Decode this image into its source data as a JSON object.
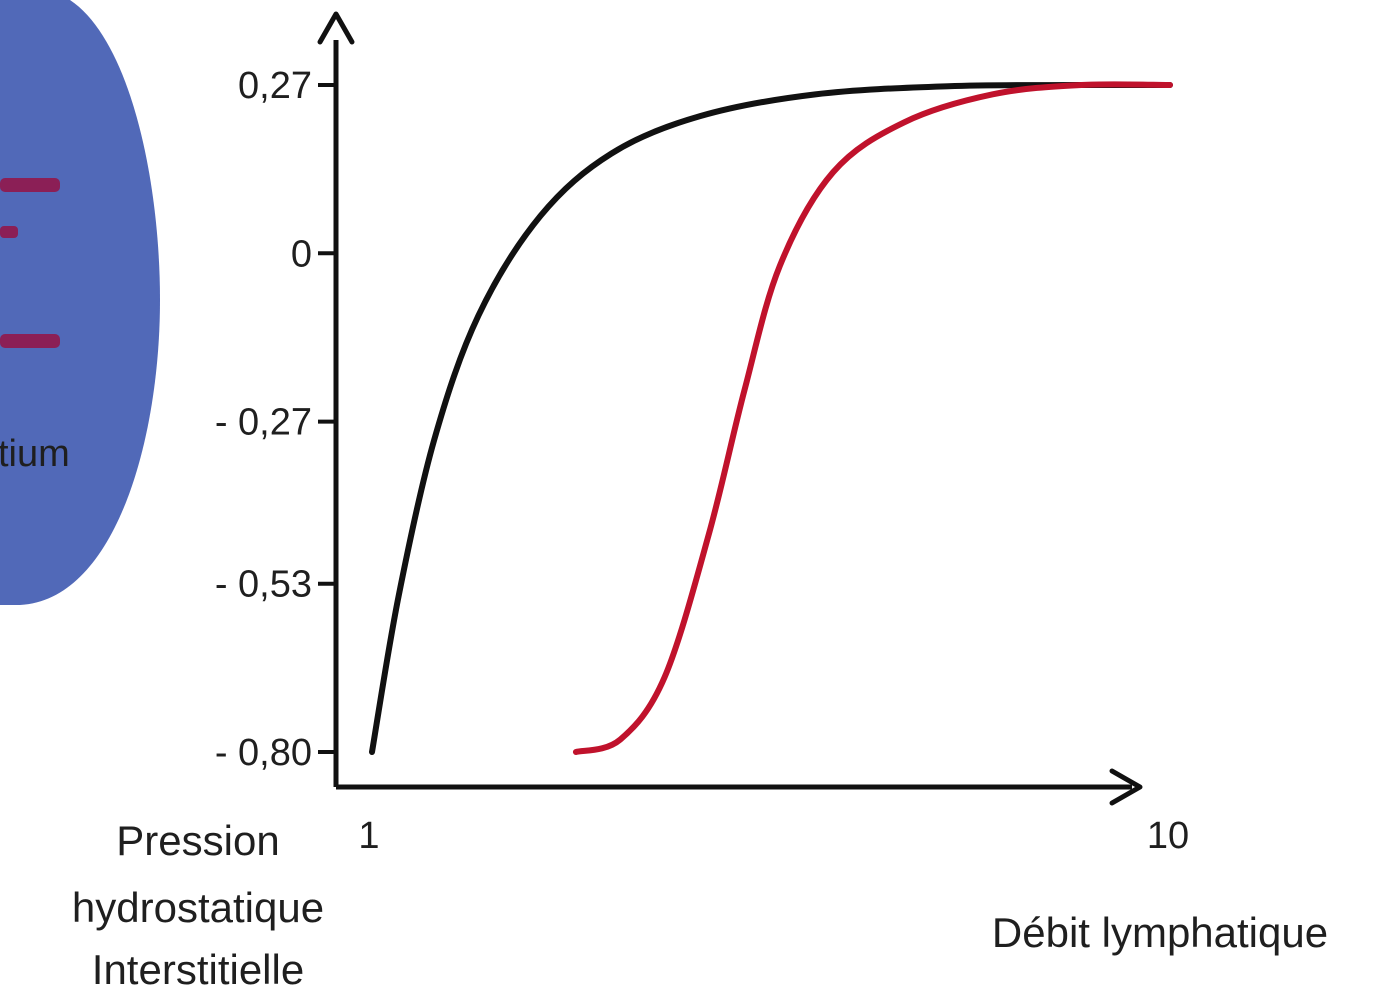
{
  "side_panel": {
    "visible_text": "tium",
    "colors": {
      "fill": "#5169b8",
      "marks": "#8b1f56"
    }
  },
  "chart_data": {
    "type": "line",
    "xlabel": "Débit lymphatique",
    "ylabel_lines": [
      "Pression",
      "hydrostatique",
      "Interstitielle"
    ],
    "xlim": [
      1,
      10
    ],
    "ylim": [
      -0.8,
      0.27
    ],
    "x_ticks": [
      {
        "value": 1,
        "label": "1"
      },
      {
        "value": 10,
        "label": "10"
      }
    ],
    "y_ticks": [
      {
        "value": 0.27,
        "label": "0,27"
      },
      {
        "value": 0,
        "label": "0"
      },
      {
        "value": -0.27,
        "label": "- 0,27"
      },
      {
        "value": -0.53,
        "label": "- 0,53"
      },
      {
        "value": -0.8,
        "label": "- 0,80"
      }
    ],
    "series": [
      {
        "color": "#111111",
        "points": [
          {
            "x": 1.0,
            "y": -0.8
          },
          {
            "x": 1.3,
            "y": -0.55
          },
          {
            "x": 1.7,
            "y": -0.3
          },
          {
            "x": 2.2,
            "y": -0.1
          },
          {
            "x": 2.9,
            "y": 0.06
          },
          {
            "x": 3.7,
            "y": 0.16
          },
          {
            "x": 4.7,
            "y": 0.22
          },
          {
            "x": 6.0,
            "y": 0.255
          },
          {
            "x": 7.5,
            "y": 0.268
          },
          {
            "x": 9.0,
            "y": 0.27
          },
          {
            "x": 10.0,
            "y": 0.27
          }
        ]
      },
      {
        "color": "#c0122c",
        "points": [
          {
            "x": 3.3,
            "y": -0.8
          },
          {
            "x": 3.8,
            "y": -0.78
          },
          {
            "x": 4.3,
            "y": -0.68
          },
          {
            "x": 4.8,
            "y": -0.45
          },
          {
            "x": 5.2,
            "y": -0.22
          },
          {
            "x": 5.6,
            "y": -0.02
          },
          {
            "x": 6.2,
            "y": 0.13
          },
          {
            "x": 7.0,
            "y": 0.21
          },
          {
            "x": 8.0,
            "y": 0.255
          },
          {
            "x": 9.0,
            "y": 0.27
          },
          {
            "x": 10.0,
            "y": 0.27
          }
        ]
      }
    ]
  }
}
